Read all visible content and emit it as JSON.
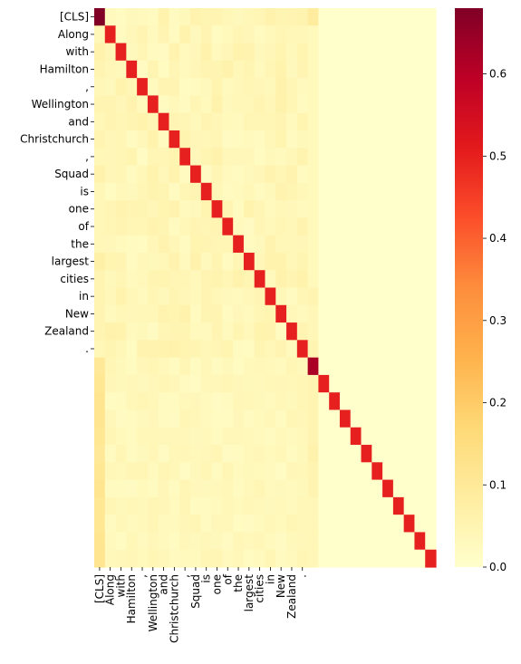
{
  "chart_data": {
    "type": "heatmap",
    "title": "",
    "xlabel": "",
    "ylabel": "",
    "tokens": [
      "[CLS]",
      "Along",
      "with",
      "Hamilton",
      ",",
      "Wellington",
      "and",
      "Christchurch",
      ",",
      "Squad",
      "is",
      "one",
      "of",
      "the",
      "largest",
      "cities",
      "in",
      "New",
      "Zealand",
      "."
    ],
    "grid_size": 32,
    "y_tick_labels": [
      "[CLS]",
      "Along",
      "with",
      "Hamilton",
      ",",
      "Wellington",
      "and",
      "Christchurch",
      ",",
      "Squad",
      "is",
      "one",
      "of",
      "the",
      "largest",
      "cities",
      "in",
      "New",
      "Zealand",
      "."
    ],
    "x_tick_labels": [
      "[CLS]",
      "Along",
      "with",
      "Hamilton",
      ",",
      "Wellington",
      "and",
      "Christchurch",
      ",",
      "Squad",
      "is",
      "one",
      "of",
      "the",
      "largest",
      "cities",
      "in",
      "New",
      "Zealand",
      "."
    ],
    "diagonal_values": [
      0.68,
      0.5,
      0.5,
      0.5,
      0.5,
      0.5,
      0.5,
      0.5,
      0.5,
      0.5,
      0.5,
      0.5,
      0.5,
      0.5,
      0.5,
      0.5,
      0.5,
      0.5,
      0.5,
      0.5,
      0.62,
      0.5,
      0.5,
      0.5,
      0.5,
      0.5,
      0.5,
      0.5,
      0.5,
      0.5,
      0.5,
      0.5
    ],
    "first_column_values": [
      0.68,
      0.04,
      0.06,
      0.05,
      0.04,
      0.05,
      0.04,
      0.05,
      0.04,
      0.06,
      0.04,
      0.04,
      0.04,
      0.04,
      0.07,
      0.05,
      0.05,
      0.05,
      0.05,
      0.04,
      0.1,
      0.11,
      0.12,
      0.12,
      0.11,
      0.1,
      0.11,
      0.12,
      0.11,
      0.11,
      0.12,
      0.12
    ],
    "token_column_20_values": [
      0.09,
      0.03,
      0.03,
      0.03,
      0.03,
      0.03,
      0.03,
      0.03,
      0.03,
      0.03,
      0.03,
      0.03,
      0.03,
      0.03,
      0.03,
      0.03,
      0.05,
      0.04,
      0.04,
      0.05,
      0.62,
      0.05,
      0.05,
      0.05,
      0.05,
      0.06,
      0.05,
      0.05,
      0.04,
      0.04,
      0.04,
      0.04
    ],
    "background_value": 0.02,
    "colorbar": {
      "colormap": "YlOrRd",
      "min": 0.0,
      "max": 0.68,
      "ticks": [
        0.0,
        0.1,
        0.2,
        0.3,
        0.4,
        0.5,
        0.6
      ],
      "tick_labels": [
        "0.0",
        "0.1",
        "0.2",
        "0.3",
        "0.4",
        "0.5",
        "0.6"
      ]
    },
    "grid": false,
    "legend": "colorbar-right"
  }
}
